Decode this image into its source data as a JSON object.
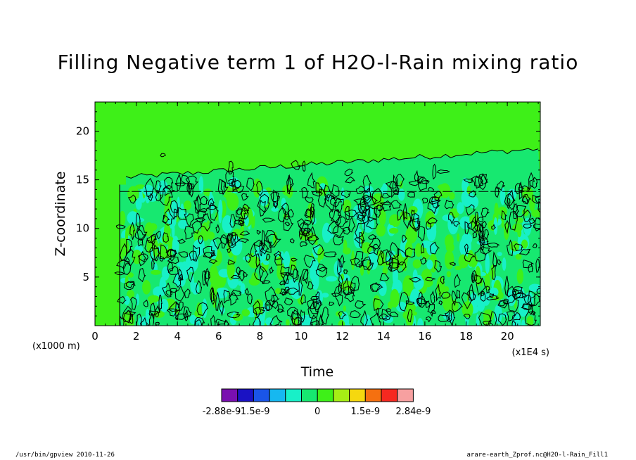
{
  "title": "Filling Negative term 1 of H2O-l-Rain mixing ratio",
  "footer_left": "/usr/bin/gpview   2010-11-26",
  "footer_right": "arare-earth_Zprof.nc@H2O-l-Rain_Fill1",
  "chart_data": {
    "type": "heatmap",
    "title": "Filling Negative term 1 of H2O-l-Rain mixing ratio",
    "xlabel": "Time",
    "x_unit": "(x1E4 s)",
    "ylabel": "Z-coordinate",
    "y_unit": "(x1000 m)",
    "xlim": [
      0,
      21.6
    ],
    "ylim": [
      0,
      23
    ],
    "x_ticks": [
      0,
      2,
      4,
      6,
      8,
      10,
      12,
      14,
      16,
      18,
      20
    ],
    "y_ticks": [
      5,
      10,
      15,
      20
    ],
    "x_tick_labels": [
      "0",
      "2",
      "4",
      "6",
      "8",
      "10",
      "12",
      "14",
      "16",
      "18",
      "20"
    ],
    "y_tick_labels": [
      "5",
      "10",
      "15",
      "20"
    ],
    "fill_onset_time": 1.2,
    "dense_top_height": 14.5,
    "light_band_top_start": 15.2,
    "light_band_top_end": 18.2,
    "colorbar": {
      "colors": [
        "#7a0fb0",
        "#1a12c4",
        "#1a55e8",
        "#16b8f0",
        "#18f0c8",
        "#17e870",
        "#3ef018",
        "#a6ee15",
        "#f5d80f",
        "#f57010",
        "#f52820",
        "#f7a0a0"
      ],
      "tick_labels": [
        "-2.88e-9",
        "-1.5e-9",
        "0",
        "1.5e-9",
        "2.84e-9"
      ],
      "tick_index": [
        0,
        2,
        6,
        9,
        12
      ]
    },
    "background_color": "#3ef018",
    "negative_color": "#17e870",
    "strong_negative_color": "#18f0c8",
    "contour_color": "#000000"
  }
}
